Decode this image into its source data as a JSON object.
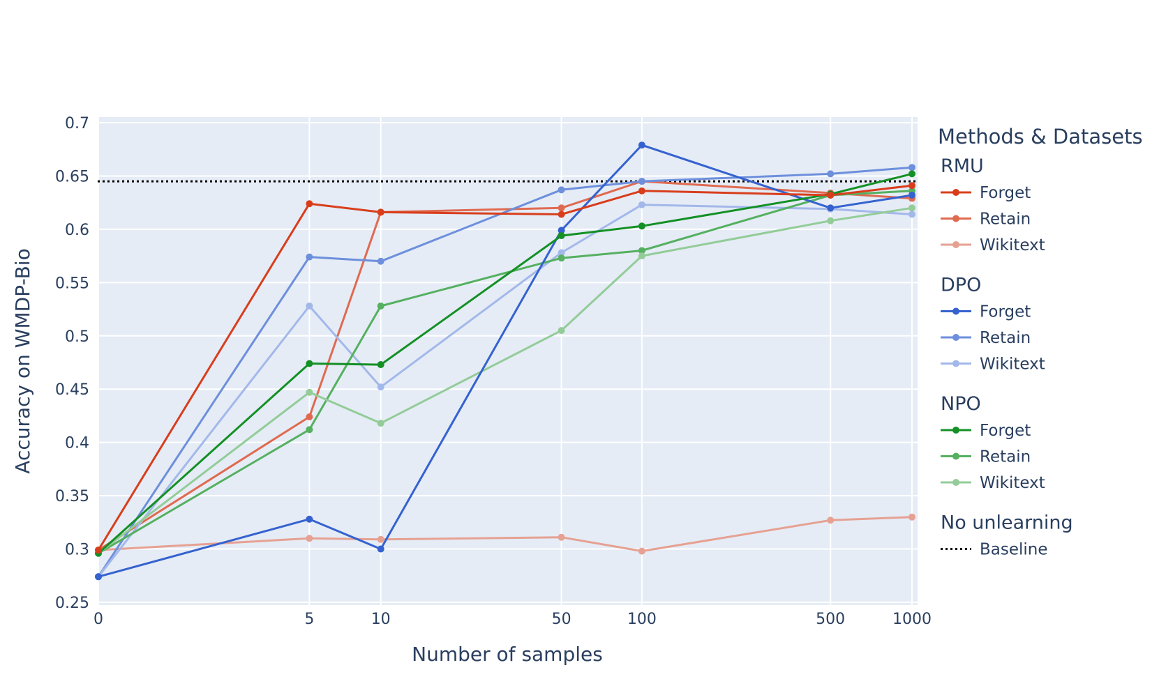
{
  "chart_data": {
    "type": "line",
    "xlabel": "Number of samples",
    "ylabel": "Accuracy on WMDP-Bio",
    "x_categories": [
      "0",
      "5",
      "10",
      "50",
      "100",
      "500",
      "1000"
    ],
    "y_ticks": [
      "0.25",
      "0.3",
      "0.35",
      "0.4",
      "0.45",
      "0.5",
      "0.55",
      "0.6",
      "0.65",
      "0.7"
    ],
    "ylim": [
      0.25,
      0.7
    ],
    "grid": true,
    "background": "#e5ecf6",
    "legend": {
      "title": "Methods & Datasets",
      "placement": "right",
      "groups": [
        {
          "name": "RMU",
          "items": [
            {
              "label": "Forget",
              "series": "rmu_forget"
            },
            {
              "label": "Retain",
              "series": "rmu_retain"
            },
            {
              "label": "Wikitext",
              "series": "rmu_wikitext"
            }
          ]
        },
        {
          "name": "DPO",
          "items": [
            {
              "label": "Forget",
              "series": "dpo_forget"
            },
            {
              "label": "Retain",
              "series": "dpo_retain"
            },
            {
              "label": "Wikitext",
              "series": "dpo_wikitext"
            }
          ]
        },
        {
          "name": "NPO",
          "items": [
            {
              "label": "Forget",
              "series": "npo_forget"
            },
            {
              "label": "Retain",
              "series": "npo_retain"
            },
            {
              "label": "Wikitext",
              "series": "npo_wikitext"
            }
          ]
        },
        {
          "name": "No unlearning",
          "items": [
            {
              "label": "Baseline",
              "series": "baseline"
            }
          ]
        }
      ]
    },
    "baseline": {
      "id": "baseline",
      "value": 0.645,
      "color": "#000000",
      "dash": "dotted"
    },
    "series": [
      {
        "id": "rmu_retain",
        "group": "RMU",
        "name": "Retain",
        "color": "#e06a50",
        "values": [
          0.299,
          0.424,
          0.616,
          0.62,
          0.645,
          0.634,
          0.629
        ]
      },
      {
        "id": "rmu_wikitext",
        "group": "RMU",
        "name": "Wikitext",
        "color": "#e6a192",
        "values": [
          0.299,
          0.31,
          0.309,
          0.311,
          0.298,
          0.327,
          0.33
        ]
      },
      {
        "id": "dpo_retain",
        "group": "DPO",
        "name": "Retain",
        "color": "#6d8fdc",
        "values": [
          0.274,
          0.574,
          0.57,
          0.637,
          0.645,
          0.652,
          0.658
        ]
      },
      {
        "id": "dpo_wikitext",
        "group": "DPO",
        "name": "Wikitext",
        "color": "#a3b8ea",
        "values": [
          0.274,
          0.528,
          0.452,
          0.578,
          0.623,
          0.619,
          0.614
        ]
      },
      {
        "id": "npo_retain",
        "group": "NPO",
        "name": "Retain",
        "color": "#55b060",
        "values": [
          0.296,
          0.412,
          0.528,
          0.573,
          0.58,
          0.632,
          0.636
        ]
      },
      {
        "id": "npo_wikitext",
        "group": "NPO",
        "name": "Wikitext",
        "color": "#93cc98",
        "values": [
          0.296,
          0.447,
          0.418,
          0.505,
          0.575,
          0.608,
          0.62
        ]
      },
      {
        "id": "dpo_forget",
        "group": "DPO",
        "name": "Forget",
        "color": "#3562cf",
        "values": [
          0.274,
          0.328,
          0.3,
          0.599,
          0.679,
          0.62,
          0.632
        ]
      },
      {
        "id": "npo_forget",
        "group": "NPO",
        "name": "Forget",
        "color": "#149025",
        "values": [
          0.296,
          0.474,
          0.473,
          0.594,
          0.603,
          0.633,
          0.652
        ]
      },
      {
        "id": "rmu_forget",
        "group": "RMU",
        "name": "Forget",
        "color": "#d83e1c",
        "values": [
          0.299,
          0.624,
          0.616,
          0.614,
          0.636,
          0.632,
          0.641
        ]
      }
    ]
  }
}
